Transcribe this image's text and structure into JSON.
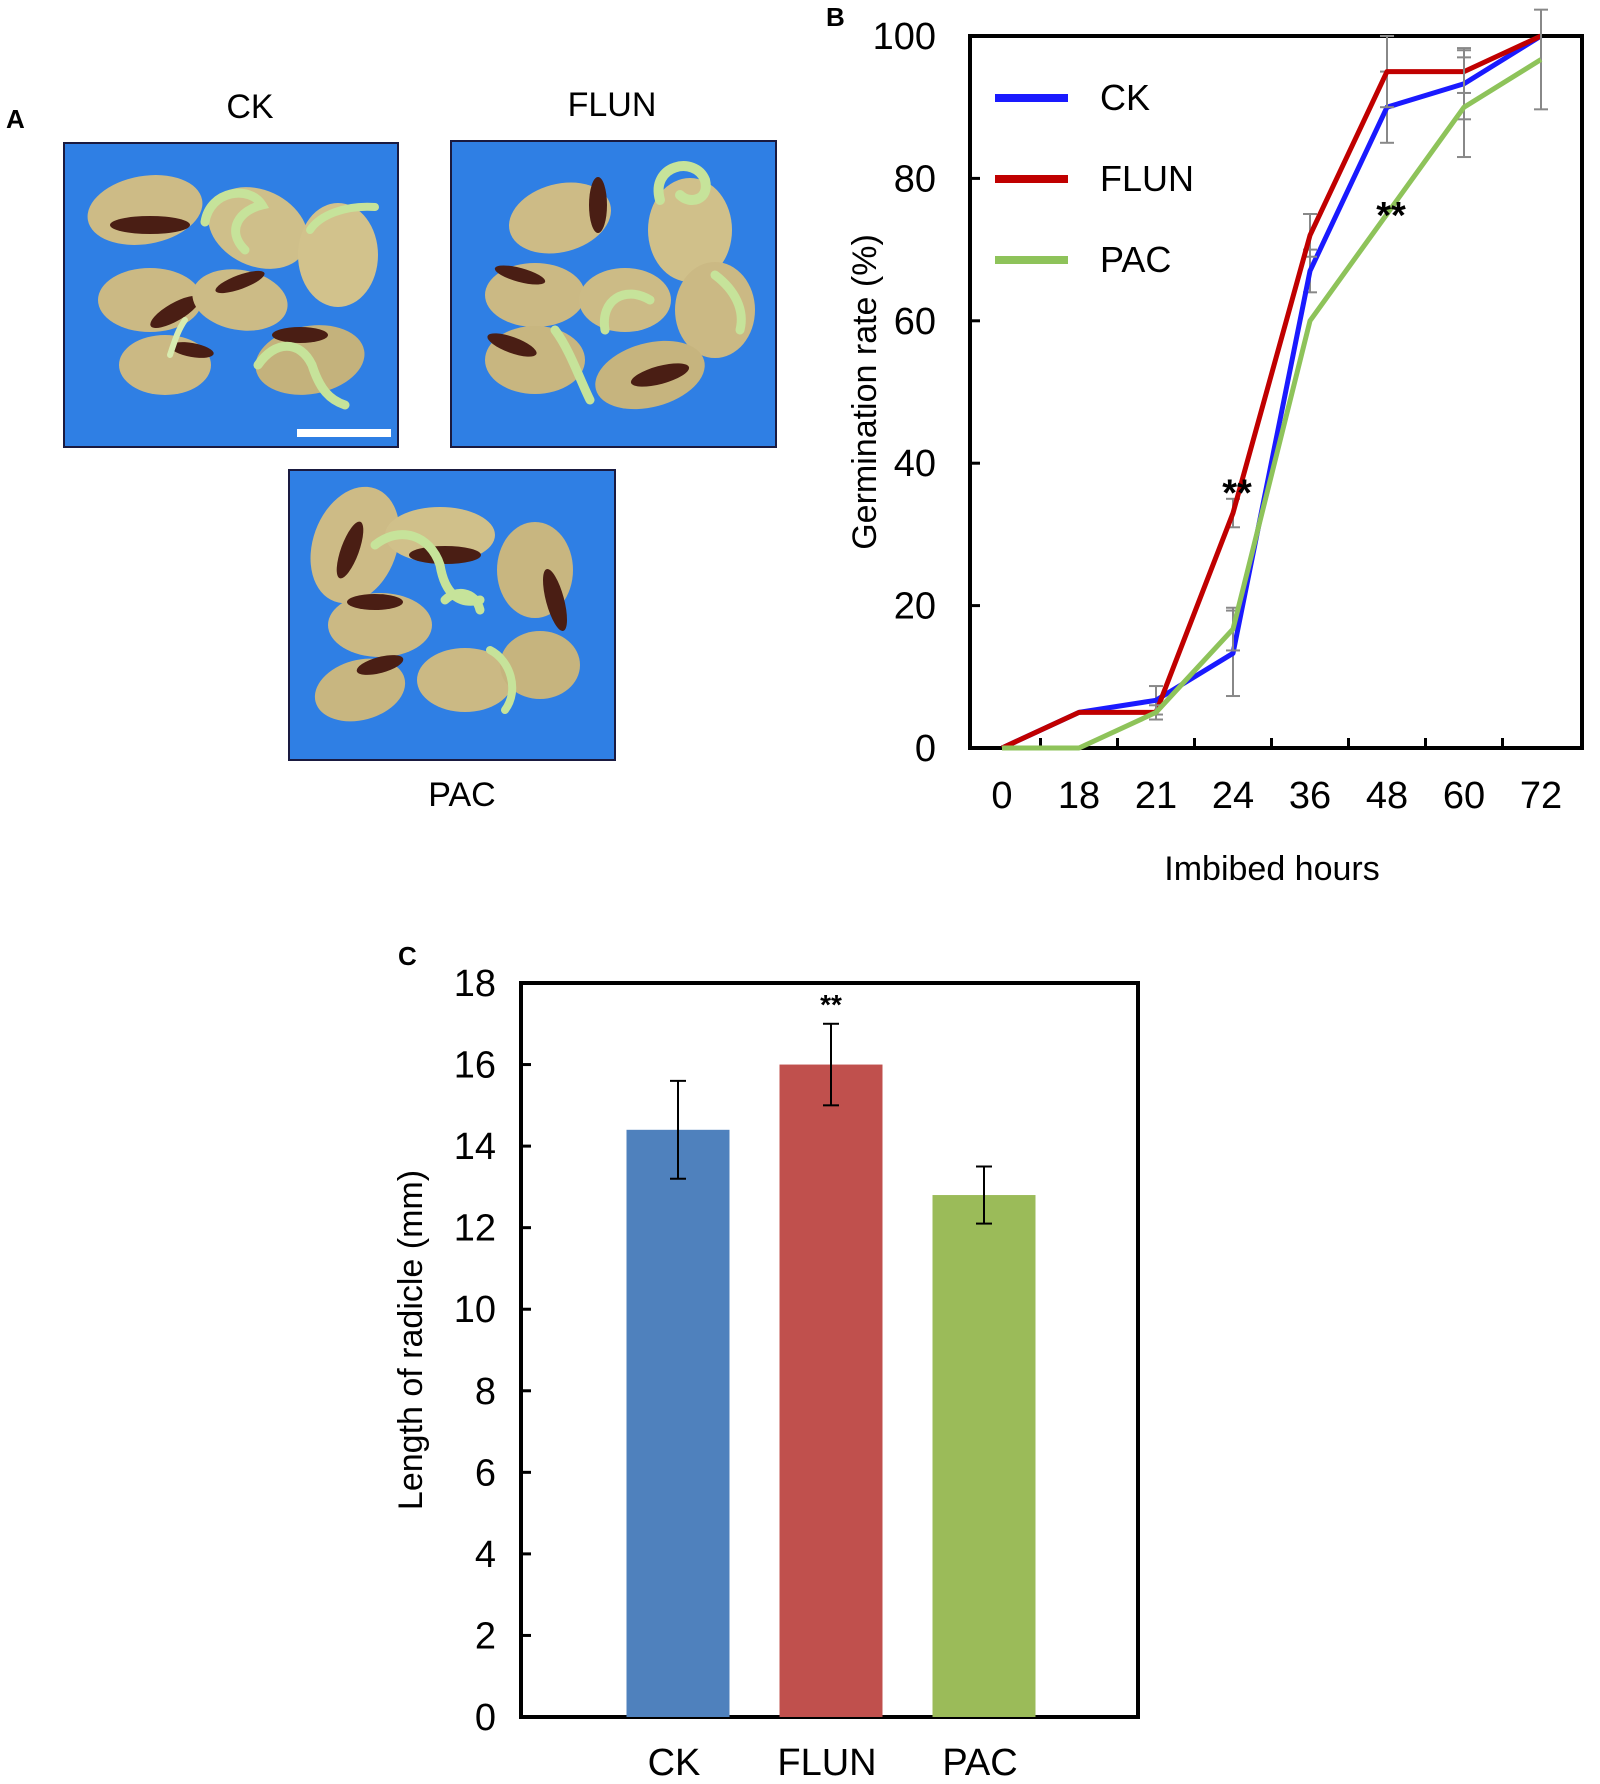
{
  "panel_a": {
    "letter": "A",
    "photos": [
      {
        "label": "CK",
        "scale_bar": true
      },
      {
        "label": "FLUN",
        "scale_bar": false
      },
      {
        "label": "PAC",
        "scale_bar": false
      }
    ],
    "colors": {
      "background": "#2f7fe4",
      "seed": "#cdbb86",
      "hilum": "#4a1e14",
      "radicle": "#c6e39a"
    }
  },
  "chart_data": [
    {
      "panel": "B",
      "type": "line",
      "title": "",
      "xlabel": "Imbibed hours",
      "ylabel": "Germination rate (%)",
      "categories": [
        "0",
        "18",
        "21",
        "24",
        "36",
        "48",
        "60",
        "72"
      ],
      "ylim": [
        0,
        100
      ],
      "yticks": [
        0,
        20,
        40,
        60,
        80,
        100
      ],
      "grid": false,
      "legend": "top-left",
      "series": [
        {
          "name": "CK",
          "color": "#1a1aff",
          "values": [
            0,
            5,
            6.7,
            13.3,
            67,
            90,
            93.3,
            100
          ],
          "errors": [
            0,
            0,
            2,
            6,
            3,
            5,
            5,
            0
          ]
        },
        {
          "name": "FLUN",
          "color": "#c00000",
          "values": [
            0,
            5,
            5,
            33,
            72,
            95,
            95,
            100
          ],
          "errors": [
            0,
            0,
            0,
            2,
            3,
            5,
            3,
            0
          ]
        },
        {
          "name": "PAC",
          "color": "#8ec35a",
          "values": [
            0,
            0,
            5,
            16.7,
            60,
            75,
            90,
            96.7
          ],
          "errors": [
            0,
            0,
            1,
            3,
            0,
            0,
            7,
            7
          ]
        }
      ],
      "annotations": [
        {
          "text": "**",
          "category_index": 3,
          "y": 38
        },
        {
          "text": "**",
          "category_index": 5,
          "y": 77
        }
      ]
    },
    {
      "panel": "C",
      "type": "bar",
      "title": "",
      "xlabel": "",
      "ylabel": "Length of radicle (mm)",
      "categories": [
        "CK",
        "FLUN",
        "PAC"
      ],
      "values": [
        14.4,
        16.0,
        12.8
      ],
      "errors": [
        1.2,
        1.0,
        0.7
      ],
      "colors": [
        "#4f81bd",
        "#c0504d",
        "#9bbb59"
      ],
      "ylim": [
        0,
        18
      ],
      "yticks": [
        0,
        2,
        4,
        6,
        8,
        10,
        12,
        14,
        16,
        18
      ],
      "grid": false,
      "annotations": [
        {
          "text": "**",
          "category_index": 1
        }
      ]
    }
  ]
}
